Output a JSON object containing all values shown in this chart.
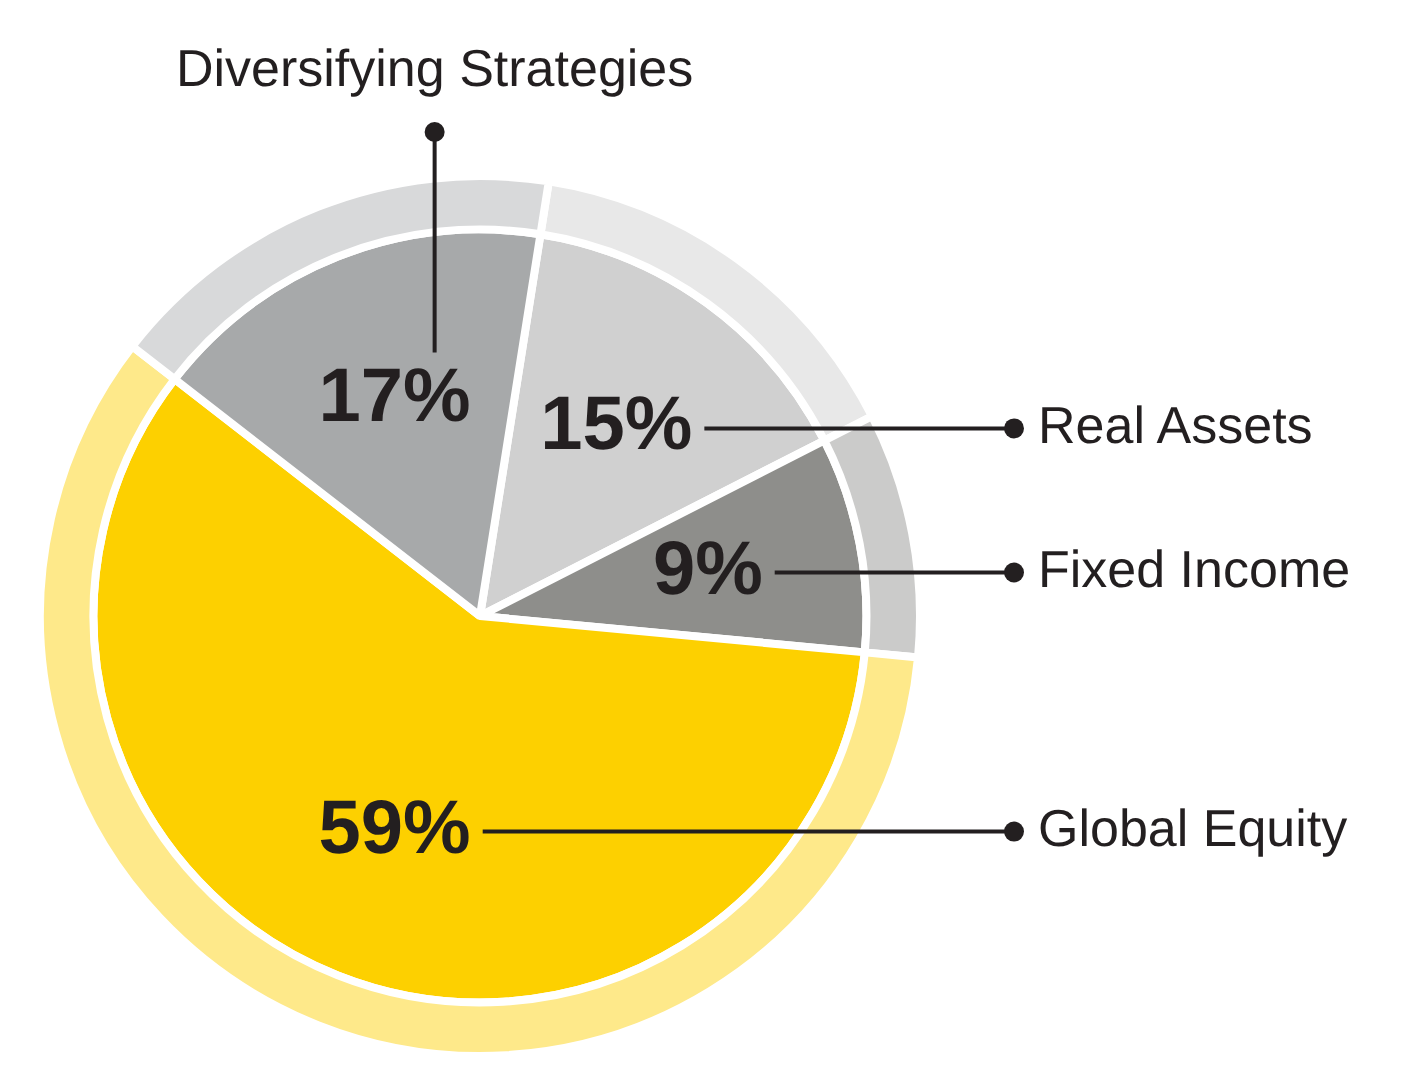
{
  "chart_data": {
    "type": "pie",
    "categories": [
      "Real Assets",
      "Fixed Income",
      "Global Equity",
      "Diversifying Strategies"
    ],
    "series": [
      {
        "values": [
          15,
          9,
          59,
          17
        ],
        "colors": [
          "#d0d0d0",
          "#8e8e8b",
          "#fdd000",
          "#a7a9aa"
        ],
        "value_labels": [
          "15%",
          "9%",
          "59%",
          "17%"
        ]
      },
      {
        "values": [
          15,
          9,
          59,
          17
        ],
        "colors": [
          "#e8e8e8",
          "#cbcbca",
          "#fee98a",
          "#d8d9da"
        ]
      }
    ],
    "legend": false
  }
}
